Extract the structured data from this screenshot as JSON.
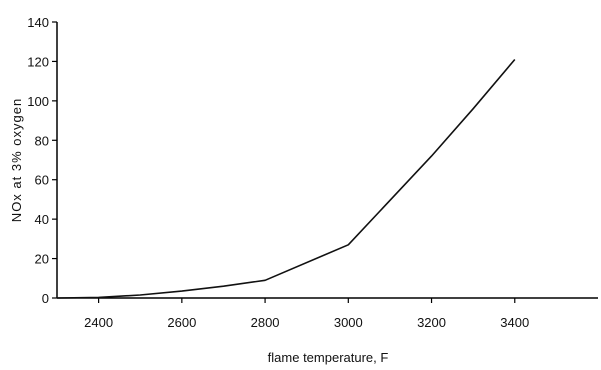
{
  "chart_data": {
    "type": "line",
    "title": "",
    "xlabel": "flame temperature, F",
    "ylabel": "NOx at 3% oxygen",
    "xlim": [
      2300,
      3600
    ],
    "ylim": [
      0,
      140
    ],
    "xticks": [
      2400,
      2600,
      2800,
      3000,
      3200,
      3400
    ],
    "yticks": [
      0,
      20,
      40,
      60,
      80,
      100,
      120,
      140
    ],
    "grid": false,
    "legend": "none",
    "series": [
      {
        "x": [
          2300,
          2400,
          2500,
          2600,
          2700,
          2800,
          3000,
          3200,
          3300,
          3400
        ],
        "y": [
          0,
          0.3,
          1.5,
          3.5,
          6,
          9,
          27,
          72,
          96,
          121
        ]
      }
    ],
    "colors": {
      "line": "#111111",
      "axis": "#000000"
    }
  }
}
